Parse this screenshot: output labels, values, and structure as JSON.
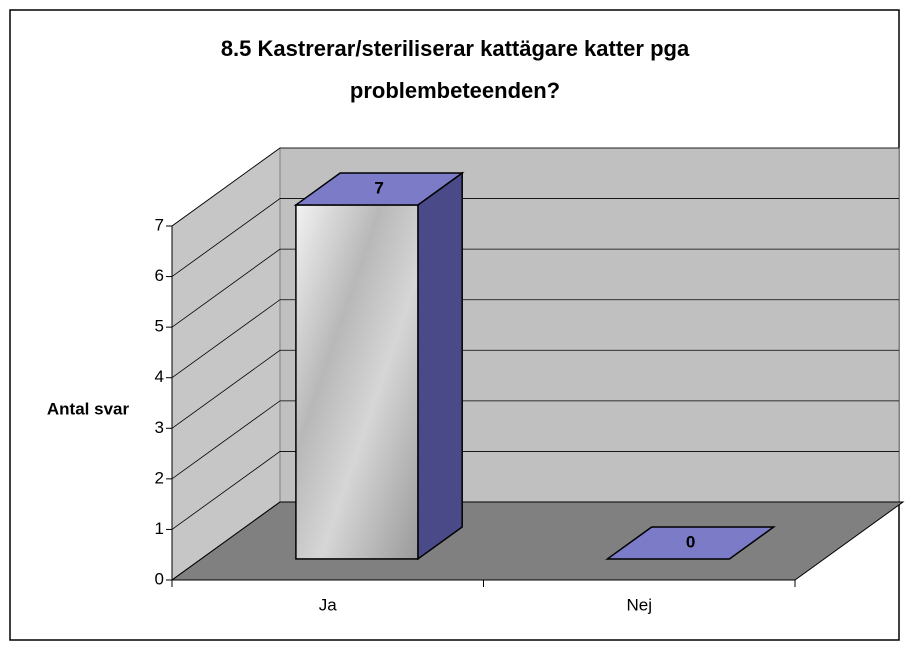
{
  "chart_data": {
    "type": "bar3d",
    "title": "8.5 Kastrerar/steriliserar kattägare katter pga problembeteenden?",
    "y_label": "Antal svar",
    "categories": [
      "Ja",
      "Nej"
    ],
    "values": [
      7,
      0
    ],
    "color": "#7b7bc8",
    "ylim": [
      0,
      7
    ],
    "yticks": [
      0,
      1,
      2,
      3,
      4,
      5,
      6,
      7
    ],
    "grid": true
  }
}
